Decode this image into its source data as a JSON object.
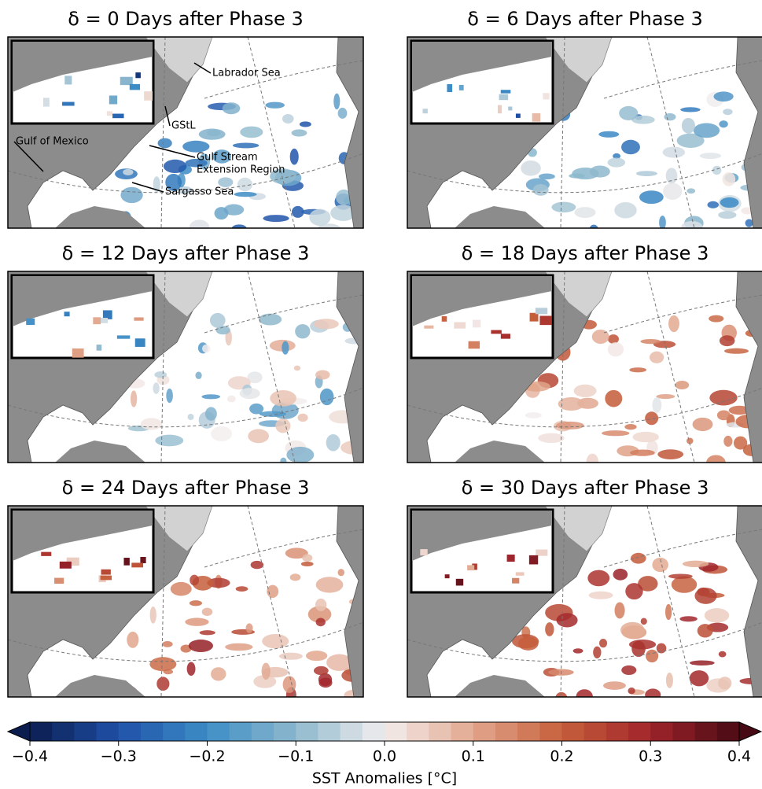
{
  "figure": {
    "panels": [
      {
        "title": "δ = 0 Days after Phase 3"
      },
      {
        "title": "δ = 6 Days after Phase 3"
      },
      {
        "title": "δ = 12 Days after Phase 3"
      },
      {
        "title": "δ = 18 Days after Phase 3"
      },
      {
        "title": "δ = 24 Days after Phase 3"
      },
      {
        "title": "δ = 30 Days after Phase 3"
      }
    ],
    "annotations": [
      {
        "lines": [
          "Labrador Sea"
        ]
      },
      {
        "lines": [
          "GStL"
        ]
      },
      {
        "lines": [
          "Gulf of Mexico"
        ]
      },
      {
        "lines": [
          "Gulf Stream",
          "Extension Region"
        ]
      },
      {
        "lines": [
          "Sargasso Sea"
        ]
      }
    ]
  },
  "chart_data": {
    "type": "colorbar",
    "label": "SST Anomalies [°C]",
    "xlim": [
      -0.4,
      0.4
    ],
    "xticks": [
      {
        "value": -0.4,
        "label": "−0.4"
      },
      {
        "value": -0.3,
        "label": "−0.3"
      },
      {
        "value": -0.2,
        "label": "−0.2"
      },
      {
        "value": -0.1,
        "label": "−0.1"
      },
      {
        "value": 0,
        "label": "0.0"
      },
      0.1,
      0.2,
      0.3,
      0.4
    ],
    "colors": [
      "#0b1d4f",
      "#1f50a8",
      "#3d8cc6",
      "#8db8cd",
      "#f3eeee",
      "#e2a78e",
      "#c65f3b",
      "#a0242b",
      "#470a14"
    ],
    "extend": "both"
  }
}
